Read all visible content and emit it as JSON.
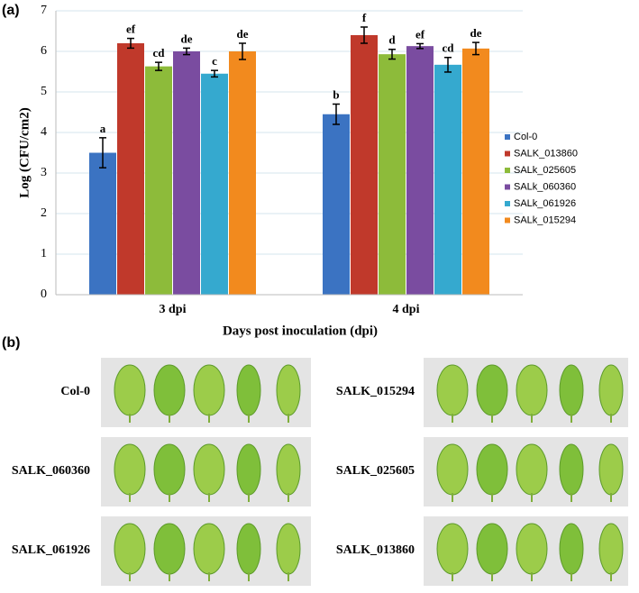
{
  "panel_a_label": "(a)",
  "chart_data": {
    "type": "bar",
    "x_label": "Days post inoculation (dpi)",
    "y_label": "Log (CFU/cm2)",
    "categories": [
      "3 dpi",
      "4 dpi"
    ],
    "series": [
      {
        "name": "Col-0",
        "color": "#3b73c2",
        "values": [
          3.5,
          4.45
        ],
        "errors": [
          0.37,
          0.25
        ],
        "significance": [
          "a",
          "b"
        ]
      },
      {
        "name": "SALK_013860",
        "color": "#c0392b",
        "values": [
          6.2,
          6.4
        ],
        "errors": [
          0.12,
          0.2
        ],
        "significance": [
          "ef",
          "f"
        ]
      },
      {
        "name": "SALk_025605",
        "color": "#8dbb3a",
        "values": [
          5.63,
          5.93
        ],
        "errors": [
          0.1,
          0.12
        ],
        "significance": [
          "cd",
          "d"
        ]
      },
      {
        "name": "SALk_060360",
        "color": "#7a4ca0",
        "values": [
          6.0,
          6.13
        ],
        "errors": [
          0.08,
          0.06
        ],
        "significance": [
          "de",
          "ef"
        ]
      },
      {
        "name": "SALk_061926",
        "color": "#35a9cf",
        "values": [
          5.45,
          5.67
        ],
        "errors": [
          0.08,
          0.18
        ],
        "significance": [
          "c",
          "cd"
        ]
      },
      {
        "name": "SALk_015294",
        "color": "#f28a1e",
        "values": [
          6.0,
          6.07
        ],
        "errors": [
          0.2,
          0.15
        ],
        "significance": [
          "de",
          "de"
        ]
      }
    ],
    "ylim": [
      0,
      7
    ],
    "yticks": [
      0,
      1,
      2,
      3,
      4,
      5,
      6,
      7
    ],
    "grid": true,
    "legend": "right"
  },
  "panel_b": {
    "label": "(b)",
    "photos": [
      "Col-0",
      "SALK_015294",
      "SALK_060360",
      "SALK_025605",
      "SALK_061926",
      "SALK_013860"
    ]
  }
}
